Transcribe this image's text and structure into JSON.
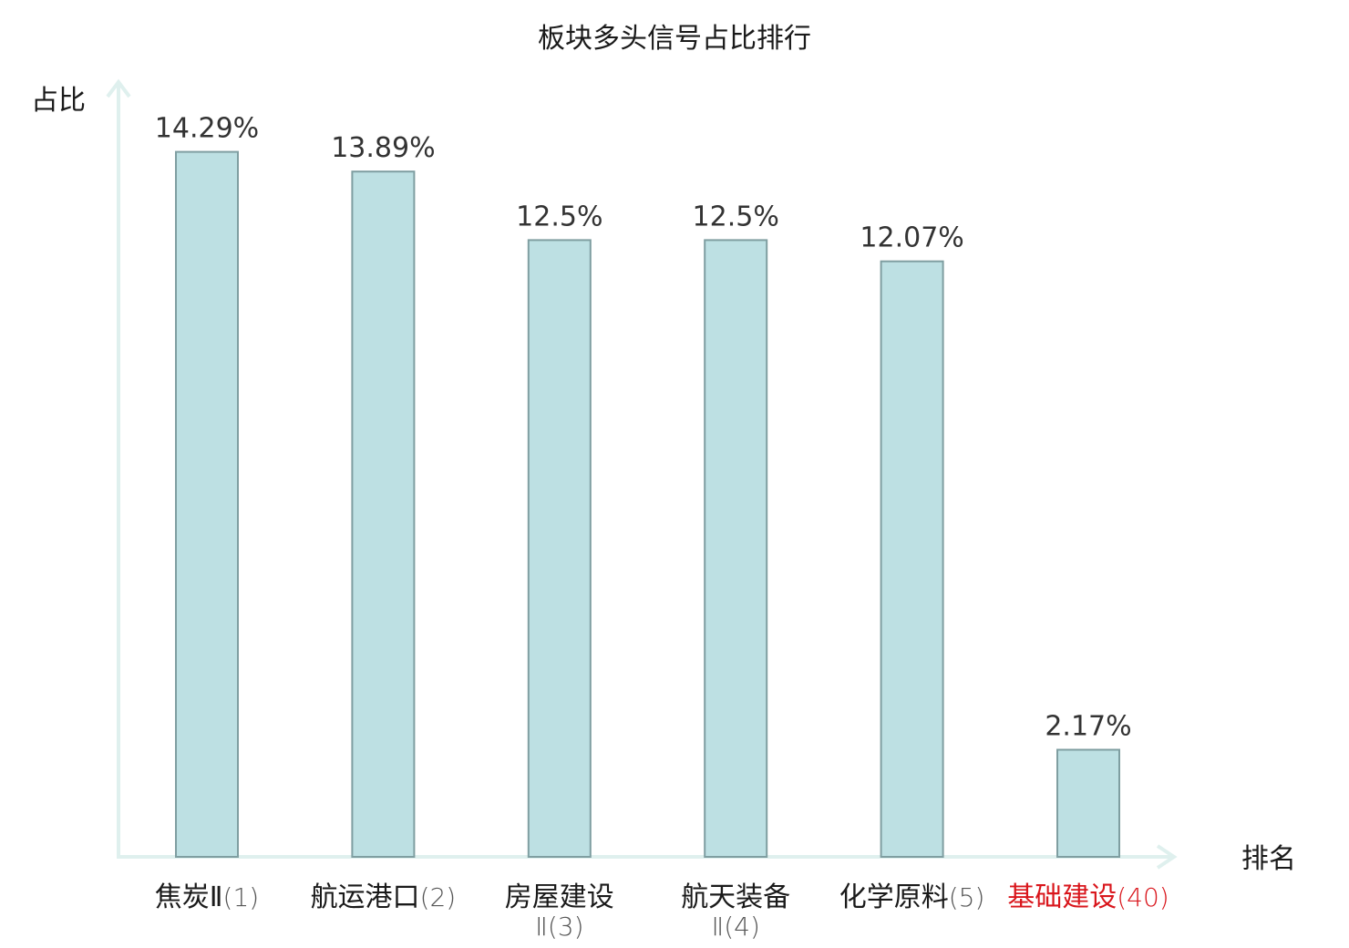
{
  "chart_data": {
    "type": "bar",
    "title": "板块多头信号占比排行",
    "ylabel": "占比",
    "xlabel": "排名",
    "ylim": [
      0,
      16
    ],
    "grid": false,
    "categories": [
      {
        "name": "焦炭Ⅱ",
        "rank": "(1)",
        "highlight": false
      },
      {
        "name": "航运港口",
        "rank": "(2)",
        "highlight": false
      },
      {
        "name": "房屋建设",
        "rank": "Ⅱ(3)",
        "highlight": false
      },
      {
        "name": "航天装备",
        "rank": "Ⅱ(4)",
        "highlight": false
      },
      {
        "name": "化学原料",
        "rank": "(5)",
        "highlight": false
      },
      {
        "name": "基础建设",
        "rank": "(40)",
        "highlight": true
      }
    ],
    "values": [
      14.29,
      13.89,
      12.5,
      12.5,
      12.07,
      2.17
    ],
    "value_labels": [
      "14.29%",
      "13.89%",
      "12.5%",
      "12.5%",
      "12.07%",
      "2.17%"
    ],
    "colors": {
      "bar_fill": "#bde0e3",
      "bar_stroke": "#7f9ea1",
      "axis": "#dff0ee",
      "text": "#1a1a1a",
      "value_text": "#333333",
      "rank_text": "#555555",
      "highlight": "#d9161c"
    }
  }
}
